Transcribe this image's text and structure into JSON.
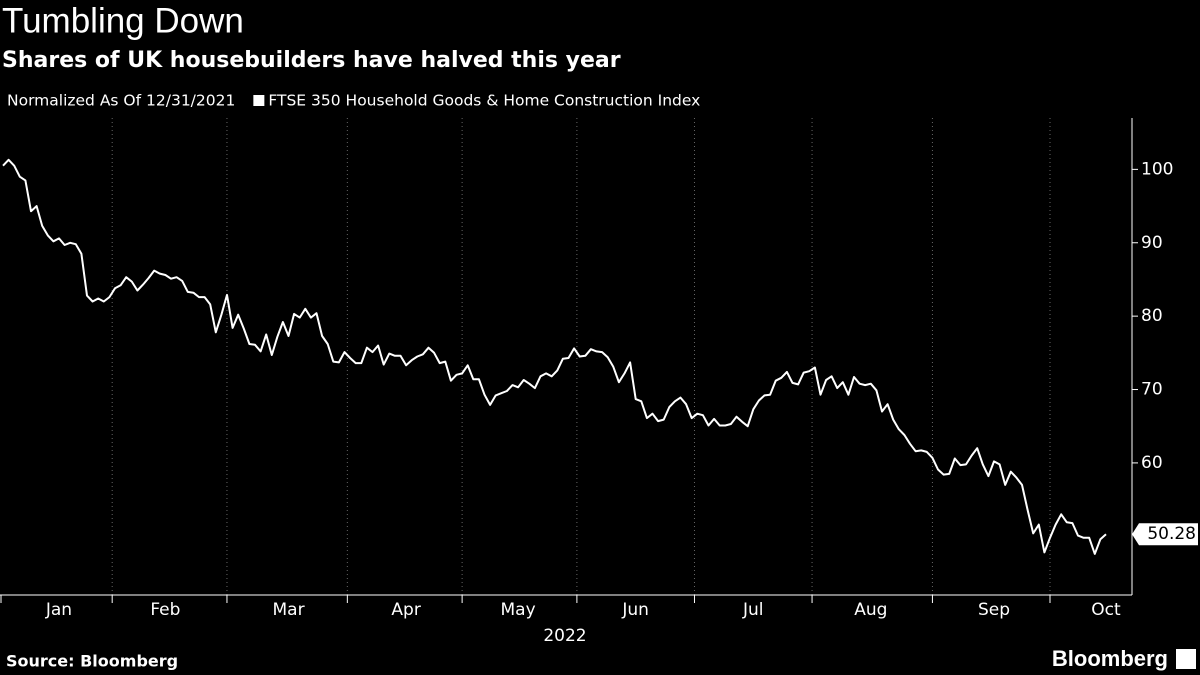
{
  "chart_data": {
    "type": "line",
    "title": "Tumbling Down",
    "subtitle": "Shares of UK housebuilders have halved this year",
    "note": "Normalized As Of 12/31/2021",
    "x_label": "2022",
    "source": "Source: Bloomberg",
    "brand": "Bloomberg",
    "categories": [
      null,
      null,
      null,
      null,
      null,
      null,
      null,
      null,
      null,
      null,
      "Jan",
      null,
      null,
      null,
      null,
      null,
      null,
      null,
      null,
      null,
      null,
      null,
      null,
      null,
      null,
      null,
      null,
      null,
      null,
      "Feb",
      null,
      null,
      null,
      null,
      null,
      null,
      null,
      null,
      null,
      null,
      null,
      null,
      null,
      null,
      null,
      null,
      null,
      null,
      null,
      null,
      null,
      "Mar",
      null,
      null,
      null,
      null,
      null,
      null,
      null,
      null,
      null,
      null,
      null,
      null,
      null,
      null,
      null,
      null,
      null,
      null,
      null,
      null,
      "Apr",
      null,
      null,
      null,
      null,
      null,
      null,
      null,
      null,
      null,
      null,
      null,
      null,
      null,
      null,
      null,
      null,
      null,
      null,
      null,
      "May",
      null,
      null,
      null,
      null,
      null,
      null,
      null,
      null,
      null,
      null,
      null,
      null,
      null,
      null,
      null,
      null,
      null,
      null,
      null,
      null,
      "Jun",
      null,
      null,
      null,
      null,
      null,
      null,
      null,
      null,
      null,
      null,
      null,
      null,
      null,
      null,
      null,
      null,
      null,
      null,
      null,
      null,
      "Jul",
      null,
      null,
      null,
      null,
      null,
      null,
      null,
      null,
      null,
      null,
      null,
      null,
      null,
      null,
      null,
      null,
      null,
      null,
      null,
      null,
      "Aug",
      null,
      null,
      null,
      null,
      null,
      null,
      null,
      null,
      null,
      null,
      null,
      null,
      null,
      null,
      null,
      null,
      null,
      null,
      null,
      null,
      null,
      "Sep",
      null,
      null,
      null,
      null,
      null,
      null,
      null,
      null,
      null,
      null,
      null,
      null,
      null,
      null,
      null,
      null,
      null,
      null,
      null,
      "Oct"
    ],
    "series": [
      {
        "name": "FTSE 350 Household Goods & Home Construction Index",
        "color": "#ffffff",
        "values": [
          100.5,
          101.3,
          100.5,
          99,
          98.5,
          94.3,
          95,
          92.3,
          91,
          90.2,
          90.6,
          89.7,
          90,
          89.8,
          88.5,
          82.8,
          82,
          82.4,
          82,
          82.6,
          83.8,
          84.2,
          85.3,
          84.7,
          83.5,
          84.3,
          85.2,
          86.2,
          85.8,
          85.6,
          85.1,
          85.3,
          84.8,
          83.3,
          83.2,
          82.6,
          82.6,
          81.6,
          77.8,
          80.2,
          82.9,
          78.4,
          80.2,
          78.3,
          76.2,
          76.1,
          75.2,
          77.5,
          74.7,
          77.2,
          79.2,
          77.3,
          80.3,
          79.8,
          81,
          79.8,
          80.4,
          77.3,
          76.2,
          73.8,
          73.7,
          75.1,
          74.3,
          73.6,
          73.6,
          75.7,
          75.1,
          76,
          73.4,
          74.9,
          74.6,
          74.6,
          73.3,
          74,
          74.5,
          74.8,
          75.7,
          75,
          73.6,
          73.8,
          71.2,
          72,
          72.2,
          73.3,
          71.4,
          71.4,
          69.3,
          67.9,
          69.2,
          69.5,
          69.8,
          70.6,
          70.3,
          71.3,
          70.8,
          70.2,
          71.8,
          72.2,
          71.8,
          72.6,
          74.2,
          74.3,
          75.6,
          74.5,
          74.6,
          75.5,
          75.2,
          75.1,
          74.4,
          73.1,
          71,
          72.2,
          73.7,
          68.7,
          68.4,
          66.1,
          66.7,
          65.7,
          65.9,
          67.6,
          68.4,
          68.9,
          68,
          66.1,
          66.7,
          66.5,
          65.1,
          66,
          65.1,
          65.1,
          65.3,
          66.3,
          65.6,
          65,
          67.3,
          68.5,
          69.2,
          69.3,
          71.2,
          71.6,
          72.4,
          70.9,
          70.7,
          72.3,
          72.5,
          73,
          69.3,
          71.3,
          71.8,
          70.2,
          71,
          69.3,
          71.7,
          70.8,
          70.6,
          70.8,
          69.9,
          67,
          68,
          65.9,
          64.6,
          63.8,
          62.6,
          61.6,
          61.7,
          61.5,
          60.7,
          59.1,
          58.4,
          58.5,
          60.6,
          59.7,
          59.8,
          61,
          62,
          59.8,
          58.2,
          60.2,
          59.8,
          57,
          58.8,
          58,
          57,
          53.6,
          50.4,
          51.6,
          47.8,
          49.8,
          51.6,
          53,
          51.9,
          51.8,
          50.1,
          49.8,
          49.8,
          47.6,
          49.6,
          50.28
        ]
      }
    ],
    "ylim": [
      42,
      107
    ],
    "yticks": [
      60,
      70,
      80,
      90,
      100
    ],
    "y_axis_side": "right",
    "last_value_label": true,
    "grid": "x"
  }
}
